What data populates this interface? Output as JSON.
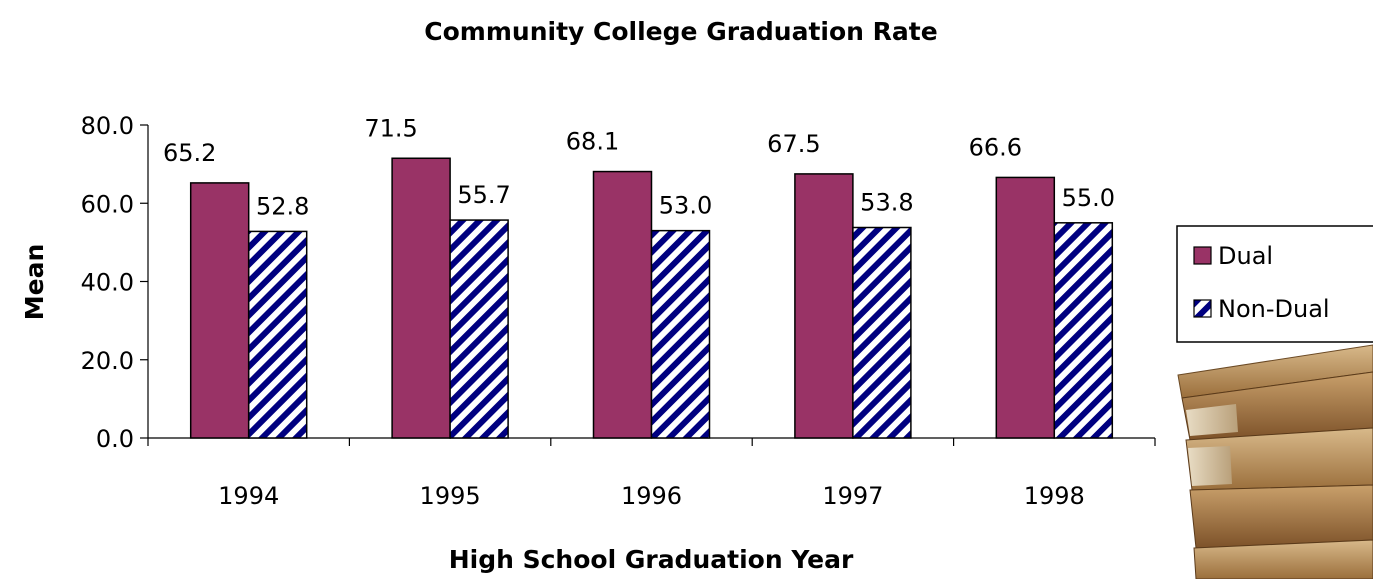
{
  "chart_data": {
    "type": "bar",
    "title": "Community College Graduation Rate",
    "xlabel": "High School Graduation Year",
    "ylabel": "Mean",
    "categories": [
      "1994",
      "1995",
      "1996",
      "1997",
      "1998"
    ],
    "series": [
      {
        "name": "Dual",
        "values": [
          65.2,
          71.5,
          68.1,
          67.5,
          66.6
        ],
        "labels": [
          "65.2",
          "71.5",
          "68.1",
          "67.5",
          "66.6"
        ],
        "color": "#993366",
        "pattern": "solid"
      },
      {
        "name": "Non-Dual",
        "values": [
          52.8,
          55.7,
          53.0,
          53.8,
          55.0
        ],
        "labels": [
          "52.8",
          "55.7",
          "53.0",
          "53.8",
          "55.0"
        ],
        "color": "#000080",
        "pattern": "diagonal-stripes"
      }
    ],
    "ylim": [
      0,
      80
    ],
    "yticks": [
      "0.0",
      "20.0",
      "40.0",
      "60.0",
      "80.0"
    ],
    "grid": false,
    "legend_position": "right"
  },
  "decoration": {
    "image": "stack-of-books"
  }
}
